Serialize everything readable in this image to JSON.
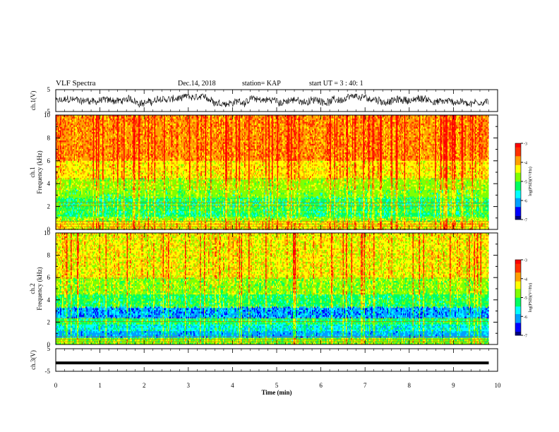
{
  "header": {
    "title": "VLF Spectra",
    "date": "Dec.14, 2018",
    "station": "station= KAP",
    "start_ut": "start  UT =   3 : 40: 1"
  },
  "chart_data": [
    {
      "type": "line",
      "panel": "ch1-waveform",
      "ylabel": "ch.1(V)",
      "yticks": [
        "5",
        "-5"
      ],
      "ylim": [
        -5,
        5
      ],
      "xlim": [
        0,
        10
      ],
      "description_values": "noisy waveform oscillating roughly between -2.5 and 2.5 V across 0 to 9.8 min"
    },
    {
      "type": "heatmap",
      "panel": "ch1-spectrogram",
      "ylabel": "ch.1",
      "ylabel2": "Frequency  (kHz)",
      "yticks": [
        "0",
        "2",
        "4",
        "6",
        "8",
        "10"
      ],
      "ylim": [
        0,
        10
      ],
      "xlim": [
        0,
        10
      ],
      "data_extent_min": 9.8,
      "colorbar": {
        "label": "log(PSD)(V²/Hz)",
        "ticks": [
          "-3",
          "-4",
          "-5",
          "-6",
          "-7"
        ],
        "range": [
          -7,
          -3
        ]
      },
      "bands": [
        {
          "f_low": 0.0,
          "f_high": 0.7,
          "level": -4.3
        },
        {
          "f_low": 0.7,
          "f_high": 1.1,
          "level": -4.8
        },
        {
          "f_low": 1.1,
          "f_high": 1.6,
          "level": -5.3
        },
        {
          "f_low": 1.6,
          "f_high": 2.2,
          "level": -5.1
        },
        {
          "f_low": 2.2,
          "f_high": 2.8,
          "level": -5.2
        },
        {
          "f_low": 2.8,
          "f_high": 3.5,
          "level": -5.0
        },
        {
          "f_low": 3.5,
          "f_high": 4.5,
          "level": -4.6
        },
        {
          "f_low": 4.5,
          "f_high": 6.0,
          "level": -4.2
        },
        {
          "f_low": 6.0,
          "f_high": 10.0,
          "level": -3.8
        }
      ]
    },
    {
      "type": "heatmap",
      "panel": "ch2-spectrogram",
      "ylabel": "ch.2",
      "ylabel2": "Frequency  (kHz)",
      "yticks": [
        "0",
        "2",
        "4",
        "6",
        "8",
        "10"
      ],
      "ylim": [
        0,
        10
      ],
      "xlim": [
        0,
        10
      ],
      "data_extent_min": 9.8,
      "colorbar": {
        "label": "log(PSD)(V²/Hz)",
        "ticks": [
          "-3",
          "-4",
          "-5",
          "-6",
          "-7"
        ],
        "range": [
          -7,
          -3
        ]
      },
      "bands": [
        {
          "f_low": 0.0,
          "f_high": 0.6,
          "level": -4.9
        },
        {
          "f_low": 0.6,
          "f_high": 1.2,
          "level": -5.9
        },
        {
          "f_low": 1.2,
          "f_high": 1.8,
          "level": -5.6
        },
        {
          "f_low": 1.8,
          "f_high": 2.4,
          "level": -5.3
        },
        {
          "f_low": 2.4,
          "f_high": 3.4,
          "level": -6.1
        },
        {
          "f_low": 3.4,
          "f_high": 4.5,
          "level": -5.1
        },
        {
          "f_low": 4.5,
          "f_high": 6.0,
          "level": -4.7
        },
        {
          "f_low": 6.0,
          "f_high": 10.0,
          "level": -4.3
        }
      ]
    },
    {
      "type": "line",
      "panel": "ch3-waveform",
      "ylabel": "ch.3(V)",
      "yticks": [
        "5",
        "-5"
      ],
      "ylim": [
        -5,
        5
      ],
      "xlim": [
        0,
        10
      ],
      "x": [
        0,
        9.8
      ],
      "y": [
        -1.3,
        -1.3
      ]
    }
  ],
  "xaxis": {
    "label": "Time  (min)",
    "ticks": [
      "0",
      "1",
      "2",
      "3",
      "4",
      "5",
      "6",
      "7",
      "8",
      "9",
      "10"
    ]
  },
  "colors": {
    "colorscale": [
      "#000080",
      "#0000ff",
      "#00a0ff",
      "#00ffff",
      "#00ff60",
      "#80ff00",
      "#ffff00",
      "#ffa000",
      "#ff3000",
      "#ff0000",
      "#ffffff"
    ]
  }
}
